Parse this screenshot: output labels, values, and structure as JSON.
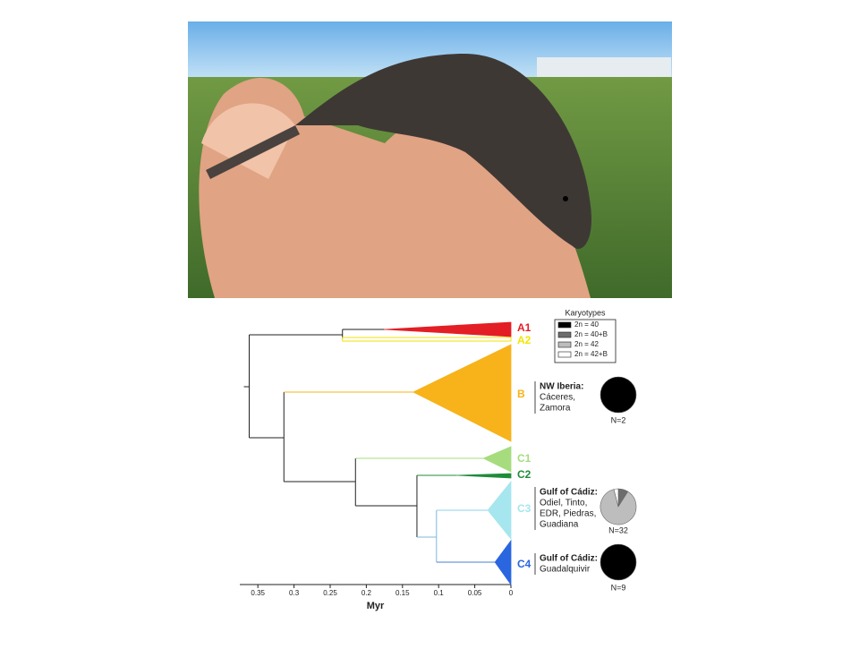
{
  "tree": {
    "axis": {
      "label": "Myr",
      "xlim": [
        0.375,
        0
      ],
      "xticks": [
        0.35,
        0.3,
        0.25,
        0.2,
        0.15,
        0.1,
        0.05,
        0
      ]
    },
    "nodes": [
      {
        "age": 0.362
      },
      {
        "age": 0.233
      },
      {
        "age": 0.314
      },
      {
        "age": 0.215
      },
      {
        "age": 0.13
      },
      {
        "age": 0.103
      }
    ],
    "clades": [
      {
        "label": "A1",
        "color": "#e31e24",
        "crown_age": 0.175
      },
      {
        "label": "A2",
        "color": "#f2e600"
      },
      {
        "label": "B",
        "color": "#f7b319",
        "crown_age": 0.135
      },
      {
        "label": "C1",
        "color": "#a6dc7e",
        "crown_age": 0.038
      },
      {
        "label": "C2",
        "color": "#1e8c3a",
        "crown_age": 0.075
      },
      {
        "label": "C3",
        "color": "#a6e6ee",
        "crown_age": 0.032
      },
      {
        "label": "C4",
        "color": "#2a66e0",
        "crown_age": 0.022
      }
    ],
    "karyotypes": {
      "title": "Karyotypes",
      "items": [
        {
          "label": "2n = 40",
          "color": "#000000"
        },
        {
          "label": "2n = 40+B",
          "color": "#6d6d6d"
        },
        {
          "label": "2n = 42",
          "color": "#bdbdbd"
        },
        {
          "label": "2n = 42+B",
          "color": "#ffffff"
        }
      ]
    },
    "populations": [
      {
        "title": "NW Iberia:",
        "lines": [
          "Cáceres,",
          "Zamora"
        ],
        "n_label": "N=2",
        "slices": [
          100,
          0,
          0,
          0
        ]
      },
      {
        "title": "Gulf of Cádiz:",
        "lines": [
          "Odiel, Tinto,",
          "EDR, Piedras,",
          "Guadiana"
        ],
        "n_label": "N=32",
        "slices": [
          0,
          9,
          87,
          4
        ]
      },
      {
        "title": "Gulf of Cádiz:",
        "lines": [
          "Guadalquivir"
        ],
        "n_label": "N=9",
        "slices": [
          100,
          0,
          0,
          0
        ]
      }
    ]
  }
}
